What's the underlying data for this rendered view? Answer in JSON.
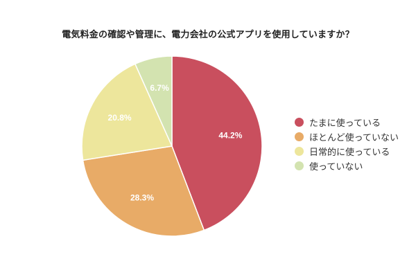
{
  "chart_data": {
    "type": "pie",
    "title": "電気料金の確認や管理に、電力会社の公式アプリを使用していますか？",
    "categories": [
      "たまに使っている",
      "ほとんど使っていない",
      "日常的に使っている",
      "使っていない"
    ],
    "values": [
      44.2,
      28.3,
      20.8,
      6.7
    ],
    "labels": [
      "44.2%",
      "28.3%",
      "20.8%",
      "6.7%"
    ],
    "colors": [
      "#C94F5E",
      "#E8AB67",
      "#EDE69C",
      "#D3E3B0"
    ],
    "legend_position": "right",
    "start_angle": "12 o'clock, clockwise"
  },
  "legend": {
    "items": [
      {
        "label": "たまに使っている",
        "color": "#C94F5E"
      },
      {
        "label": "ほとんど使っていない",
        "color": "#E8AB67"
      },
      {
        "label": "日常的に使っている",
        "color": "#EDE69C"
      },
      {
        "label": "使っていない",
        "color": "#D3E3B0"
      }
    ]
  }
}
